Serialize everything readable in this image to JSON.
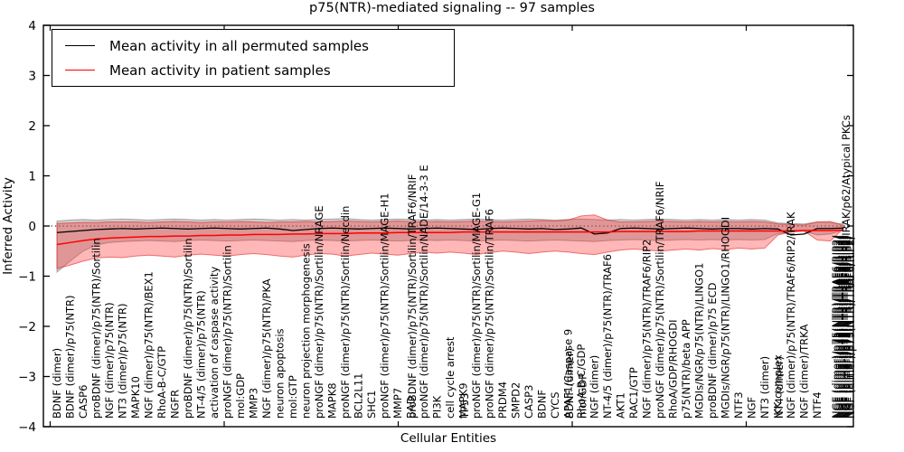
{
  "title": "p75(NTR)-mediated signaling -- 97 samples",
  "legend": {
    "items": [
      {
        "label": "Mean activity in all permuted samples",
        "color": "#000000"
      },
      {
        "label": "Mean activity in patient samples",
        "color": "#ff0000"
      }
    ]
  },
  "chart_data": {
    "type": "line",
    "title": "p75(NTR)-mediated signaling -- 97 samples",
    "xlabel": "Cellular Entities",
    "ylabel": "Inferred Activity",
    "ylim": [
      -4,
      4
    ],
    "yticks": [
      {
        "v": 4,
        "label": "4"
      },
      {
        "v": 3,
        "label": "3"
      },
      {
        "v": 2,
        "label": "2"
      },
      {
        "v": 1,
        "label": "1"
      },
      {
        "v": 0,
        "label": "0"
      },
      {
        "v": -1,
        "label": "−1"
      },
      {
        "v": -2,
        "label": "−2"
      },
      {
        "v": -3,
        "label": "−3"
      },
      {
        "v": -4,
        "label": "−4"
      }
    ],
    "zero_line": 0,
    "legend_position": "upper left",
    "grid": false,
    "entities": [
      {
        "i": 0,
        "labels": [
          "BDNF (dimer)"
        ]
      },
      {
        "i": 1,
        "labels": [
          "BDNF (dimer)/p75(NTR)"
        ]
      },
      {
        "i": 2,
        "labels": [
          "CASP6"
        ]
      },
      {
        "i": 3,
        "labels": [
          "proBDNF (dimer)/p75(NTR)/Sortilin"
        ]
      },
      {
        "i": 4,
        "labels": [
          "NGF (dimer)/p75(NTR)"
        ]
      },
      {
        "i": 5,
        "labels": [
          "NT3 (dimer)/p75(NTR)"
        ]
      },
      {
        "i": 6,
        "labels": [
          "MAPK10"
        ]
      },
      {
        "i": 7,
        "labels": [
          "NGF (dimer)/p75(NTR)/BEX1"
        ]
      },
      {
        "i": 8,
        "labels": [
          "RhoA-B-C/GTP"
        ]
      },
      {
        "i": 9,
        "labels": [
          "NGFR"
        ]
      },
      {
        "i": 10,
        "labels": [
          "proBDNF (dimer)/p75(NTR)/Sortilin"
        ]
      },
      {
        "i": 11,
        "labels": [
          "NT-4/5 (dimer)/p75(NTR)"
        ]
      },
      {
        "i": 12,
        "labels": [
          "activation of caspase activity"
        ]
      },
      {
        "i": 13,
        "labels": [
          "proNGF (dimer)/p75(NTR)/Sortilin"
        ]
      },
      {
        "i": 14,
        "labels": [
          "mol:GDP"
        ]
      },
      {
        "i": 15,
        "labels": [
          "MMP3"
        ]
      },
      {
        "i": 16,
        "labels": [
          "NGF (dimer)/p75(NTR)/PKA"
        ]
      },
      {
        "i": 17,
        "labels": [
          "neuron apoptosis"
        ]
      },
      {
        "i": 18,
        "labels": [
          "mol:GTP"
        ]
      },
      {
        "i": 19,
        "labels": [
          "neuron projection morphogenesis"
        ]
      },
      {
        "i": 20,
        "labels": [
          "proNGF (dimer)/p75(NTR)/Sortilin/NRAGE"
        ]
      },
      {
        "i": 21,
        "labels": [
          "MAPK8"
        ]
      },
      {
        "i": 22,
        "labels": [
          "proNGF (dimer)/p75(NTR)/Sortilin/Necdin"
        ]
      },
      {
        "i": 23,
        "labels": [
          "BCL2L11"
        ]
      },
      {
        "i": 24,
        "labels": [
          "SHC1"
        ]
      },
      {
        "i": 25,
        "labels": [
          "proNGF (dimer)/p75(NTR)/Sortilin/MAGE-H1"
        ]
      },
      {
        "i": 26,
        "labels": [
          "MMP7"
        ]
      },
      {
        "i": 27,
        "labels": [
          "BAD",
          "proBDNF (dimer)/p75(NTR)/Sortilin/TRAF6/NRIF"
        ]
      },
      {
        "i": 28,
        "labels": [
          "proNGF (dimer)/p75(NTR)/Sortilin/NADE/14-3-3 E"
        ]
      },
      {
        "i": 29,
        "labels": [
          "PI3K"
        ]
      },
      {
        "i": 30,
        "labels": [
          "cell cycle arrest"
        ]
      },
      {
        "i": 31,
        "labels": [
          "MAPK9",
          "TP53"
        ]
      },
      {
        "i": 32,
        "labels": [
          "proNGF (dimer)/p75(NTR)/Sortilin/MAGE-G1"
        ]
      },
      {
        "i": 33,
        "labels": [
          "proNGF (dimer)/p75(NTR)/Sortilin/TRAF6"
        ]
      },
      {
        "i": 34,
        "labels": [
          "PRDM4"
        ]
      },
      {
        "i": 35,
        "labels": [
          "SMPD2"
        ]
      },
      {
        "i": 36,
        "labels": [
          "CASP3"
        ]
      },
      {
        "i": 37,
        "labels": [
          "BDNF"
        ]
      },
      {
        "i": 38,
        "labels": [
          "CYCS"
        ]
      },
      {
        "i": 39,
        "labels": [
          "APAF1/Caspase 9",
          "BDNF (dimer)"
        ]
      },
      {
        "i": 40,
        "labels": [
          "RhoA-B-C/GDP",
          "mol:GDP"
        ]
      },
      {
        "i": 41,
        "labels": [
          "NGF (dimer)"
        ]
      },
      {
        "i": 42,
        "labels": [
          "NT-4/5 (dimer)/p75(NTR)/TRAF6"
        ]
      },
      {
        "i": 43,
        "labels": [
          "AKT1"
        ]
      },
      {
        "i": 44,
        "labels": [
          "RAC1/GTP"
        ]
      },
      {
        "i": 45,
        "labels": [
          "NGF (dimer)/p75(NTR)/TRAF6/RIP2"
        ]
      },
      {
        "i": 46,
        "labels": [
          "proNGF (dimer)/p75(NTR)/Sortilin/TRAF6/NRIF"
        ]
      },
      {
        "i": 47,
        "labels": [
          "RhoA/GDP/RHOGDI"
        ]
      },
      {
        "i": 48,
        "labels": [
          "p75(NTR)/beta APP"
        ]
      },
      {
        "i": 49,
        "labels": [
          "MGDIs/NGR/p75(NTR)/LINGO1"
        ]
      },
      {
        "i": 50,
        "labels": [
          "proBDNF (dimer)/p75 ECD"
        ]
      },
      {
        "i": 51,
        "labels": [
          "MGDIs/NGR/p75(NTR)/LINGO1/RHOGDI"
        ]
      },
      {
        "i": 52,
        "labels": [
          "NTF3"
        ]
      },
      {
        "i": 53,
        "labels": [
          "NGF"
        ]
      },
      {
        "i": 54,
        "labels": [
          "NT3 (dimer)"
        ]
      },
      {
        "i": 55,
        "labels": [
          "IKK complex",
          "NT4 (dimer)"
        ]
      },
      {
        "i": 56,
        "labels": [
          "NGF (dimer)/p75(NTR)/TRAF6/RIP2/IRAK"
        ]
      },
      {
        "i": 57,
        "labels": [
          "NGF (dimer)/TRKA"
        ]
      },
      {
        "i": 58,
        "labels": [
          "NTF4"
        ]
      }
    ],
    "terminal_blob": {
      "x_index": 60,
      "visible_label": "NGF (dimer)/p75(NTR)/TRAF6/RIP2/IRAK/p62/Atypical PKCs",
      "overlapping_count": 9,
      "note": "dense cluster of overlapping tick labels, illegible"
    },
    "series": [
      {
        "name": "Mean activity in all permuted samples",
        "color": "#000000",
        "values": [
          -0.13,
          -0.11,
          -0.09,
          -0.07,
          -0.06,
          -0.05,
          -0.06,
          -0.05,
          -0.04,
          -0.05,
          -0.06,
          -0.05,
          -0.04,
          -0.05,
          -0.06,
          -0.05,
          -0.04,
          -0.06,
          -0.09,
          -0.07,
          -0.05,
          -0.04,
          -0.05,
          -0.06,
          -0.05,
          -0.04,
          -0.05,
          -0.06,
          -0.05,
          -0.04,
          -0.05,
          -0.06,
          -0.07,
          -0.05,
          -0.04,
          -0.05,
          -0.06,
          -0.05,
          -0.07,
          -0.06,
          -0.04,
          -0.16,
          -0.14,
          -0.05,
          -0.04,
          -0.05,
          -0.06,
          -0.05,
          -0.04,
          -0.05,
          -0.06,
          -0.05,
          -0.05,
          -0.06,
          -0.05,
          -0.06,
          -0.18,
          -0.16,
          -0.05,
          -0.05,
          -0.04
        ]
      },
      {
        "name": "Mean activity in patient samples",
        "color": "#ff0000",
        "values": [
          -0.37,
          -0.33,
          -0.29,
          -0.26,
          -0.24,
          -0.23,
          -0.22,
          -0.21,
          -0.21,
          -0.2,
          -0.2,
          -0.19,
          -0.19,
          -0.18,
          -0.18,
          -0.17,
          -0.17,
          -0.17,
          -0.16,
          -0.16,
          -0.15,
          -0.15,
          -0.15,
          -0.14,
          -0.14,
          -0.14,
          -0.13,
          -0.13,
          -0.13,
          -0.13,
          -0.13,
          -0.12,
          -0.12,
          -0.12,
          -0.12,
          -0.12,
          -0.12,
          -0.12,
          -0.12,
          -0.12,
          -0.12,
          -0.12,
          -0.12,
          -0.11,
          -0.11,
          -0.11,
          -0.11,
          -0.11,
          -0.11,
          -0.1,
          -0.1,
          -0.1,
          -0.1,
          -0.1,
          -0.1,
          -0.1,
          -0.1,
          -0.09,
          -0.09,
          -0.09,
          -0.08
        ]
      }
    ],
    "bands": [
      {
        "series": "Mean activity in all permuted samples",
        "fill": "rgba(130,130,130,0.38)",
        "edge": "rgba(0,0,0,0.28)",
        "upper": [
          0.1,
          0.12,
          0.13,
          0.12,
          0.13,
          0.14,
          0.13,
          0.12,
          0.13,
          0.14,
          0.13,
          0.12,
          0.13,
          0.12,
          0.13,
          0.14,
          0.13,
          0.12,
          0.13,
          0.12,
          0.13,
          0.14,
          0.15,
          0.13,
          0.12,
          0.13,
          0.14,
          0.13,
          0.12,
          0.13,
          0.12,
          0.13,
          0.14,
          0.13,
          0.12,
          0.13,
          0.14,
          0.13,
          0.12,
          0.13,
          0.14,
          0.13,
          0.12,
          0.13,
          0.12,
          0.13,
          0.14,
          0.13,
          0.12,
          0.13,
          0.12,
          0.13,
          0.12,
          0.13,
          0.12,
          0.06,
          0.05,
          0.04,
          0.08,
          0.07,
          0.04
        ],
        "lower": [
          -0.92,
          -0.7,
          -0.5,
          -0.38,
          -0.33,
          -0.31,
          -0.3,
          -0.29,
          -0.3,
          -0.31,
          -0.29,
          -0.28,
          -0.29,
          -0.3,
          -0.29,
          -0.28,
          -0.29,
          -0.3,
          -0.31,
          -0.29,
          -0.28,
          -0.29,
          -0.3,
          -0.29,
          -0.28,
          -0.29,
          -0.3,
          -0.29,
          -0.28,
          -0.29,
          -0.28,
          -0.29,
          -0.3,
          -0.29,
          -0.28,
          -0.29,
          -0.3,
          -0.29,
          -0.28,
          -0.29,
          -0.3,
          -0.31,
          -0.29,
          -0.28,
          -0.27,
          -0.28,
          -0.29,
          -0.28,
          -0.27,
          -0.28,
          -0.27,
          -0.28,
          -0.27,
          -0.28,
          -0.27,
          -0.15,
          -0.12,
          -0.1,
          -0.18,
          -0.16,
          -0.08
        ]
      },
      {
        "series": "Mean activity in patient samples",
        "fill": "rgba(255,30,30,0.32)",
        "edge": "rgba(225,20,20,0.55)",
        "upper": [
          0.05,
          0.06,
          0.07,
          0.07,
          0.08,
          0.08,
          0.08,
          0.07,
          0.08,
          0.09,
          0.08,
          0.07,
          0.08,
          0.08,
          0.09,
          0.08,
          0.07,
          0.08,
          0.08,
          0.09,
          0.08,
          0.09,
          0.1,
          0.09,
          0.08,
          0.09,
          0.1,
          0.09,
          0.08,
          0.09,
          0.08,
          0.09,
          0.1,
          0.09,
          0.08,
          0.09,
          0.1,
          0.11,
          0.1,
          0.12,
          0.2,
          0.22,
          0.12,
          0.08,
          0.08,
          0.09,
          0.1,
          0.09,
          0.08,
          0.09,
          0.08,
          0.09,
          0.08,
          0.09,
          0.08,
          0.04,
          0.03,
          0.02,
          0.08,
          0.09,
          0.01
        ],
        "lower": [
          -0.85,
          -0.78,
          -0.7,
          -0.64,
          -0.62,
          -0.63,
          -0.6,
          -0.58,
          -0.6,
          -0.62,
          -0.58,
          -0.56,
          -0.58,
          -0.6,
          -0.57,
          -0.55,
          -0.57,
          -0.6,
          -0.62,
          -0.58,
          -0.55,
          -0.56,
          -0.6,
          -0.57,
          -0.54,
          -0.56,
          -0.58,
          -0.55,
          -0.52,
          -0.54,
          -0.52,
          -0.54,
          -0.57,
          -0.53,
          -0.5,
          -0.52,
          -0.55,
          -0.52,
          -0.5,
          -0.52,
          -0.55,
          -0.57,
          -0.52,
          -0.48,
          -0.46,
          -0.48,
          -0.5,
          -0.48,
          -0.46,
          -0.48,
          -0.45,
          -0.47,
          -0.44,
          -0.46,
          -0.44,
          -0.18,
          -0.12,
          -0.1,
          -0.28,
          -0.3,
          -0.05
        ]
      }
    ]
  }
}
